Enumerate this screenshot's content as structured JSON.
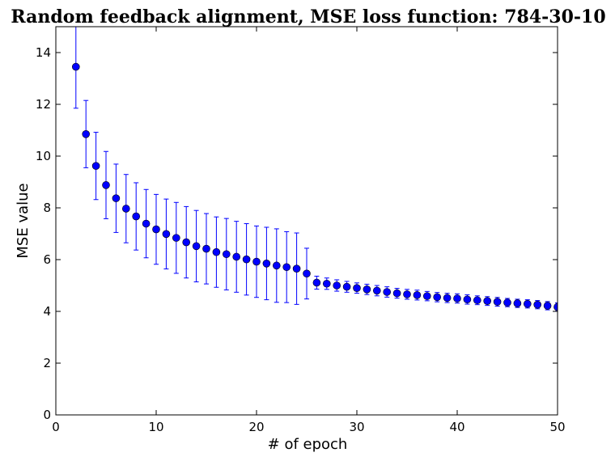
{
  "chart_data": {
    "type": "scatter",
    "title": "Random feedback alignment, MSE loss function: 784-30-10",
    "xlabel": "# of epoch",
    "ylabel": "MSE value",
    "xlim": [
      0,
      50
    ],
    "ylim": [
      0,
      15
    ],
    "xticks": [
      0,
      10,
      20,
      30,
      40,
      50
    ],
    "yticks": [
      0,
      2,
      4,
      6,
      8,
      10,
      12,
      14
    ],
    "grid": false,
    "legend": "none",
    "colors": {
      "marker": "#0000ff",
      "errorbar": "#0000ff",
      "axis": "#000000"
    },
    "series": [
      {
        "x": [
          2,
          3,
          4,
          5,
          6,
          7,
          8,
          9,
          10,
          11,
          12,
          13,
          14,
          15,
          16,
          17,
          18,
          19,
          20,
          21,
          22,
          23,
          24,
          25,
          26,
          27,
          28,
          29,
          30,
          31,
          32,
          33,
          34,
          35,
          36,
          37,
          38,
          39,
          40,
          41,
          42,
          43,
          44,
          45,
          46,
          47,
          48,
          49,
          50
        ],
        "y": [
          13.45,
          10.85,
          9.62,
          8.88,
          8.37,
          7.97,
          7.67,
          7.39,
          7.17,
          6.99,
          6.84,
          6.67,
          6.52,
          6.42,
          6.29,
          6.21,
          6.11,
          6.01,
          5.92,
          5.85,
          5.77,
          5.71,
          5.65,
          5.46,
          5.11,
          5.07,
          5.0,
          4.95,
          4.9,
          4.85,
          4.8,
          4.75,
          4.7,
          4.66,
          4.63,
          4.59,
          4.55,
          4.52,
          4.5,
          4.46,
          4.43,
          4.4,
          4.37,
          4.34,
          4.31,
          4.29,
          4.26,
          4.22,
          4.17
        ],
        "err": [
          1.6,
          1.3,
          1.3,
          1.3,
          1.32,
          1.32,
          1.3,
          1.32,
          1.35,
          1.35,
          1.37,
          1.38,
          1.38,
          1.36,
          1.36,
          1.38,
          1.37,
          1.38,
          1.38,
          1.4,
          1.42,
          1.37,
          1.38,
          0.98,
          0.25,
          0.22,
          0.22,
          0.21,
          0.2,
          0.2,
          0.2,
          0.2,
          0.19,
          0.19,
          0.19,
          0.18,
          0.18,
          0.18,
          0.18,
          0.18,
          0.17,
          0.17,
          0.17,
          0.16,
          0.16,
          0.16,
          0.16,
          0.16,
          0.16
        ]
      }
    ]
  }
}
